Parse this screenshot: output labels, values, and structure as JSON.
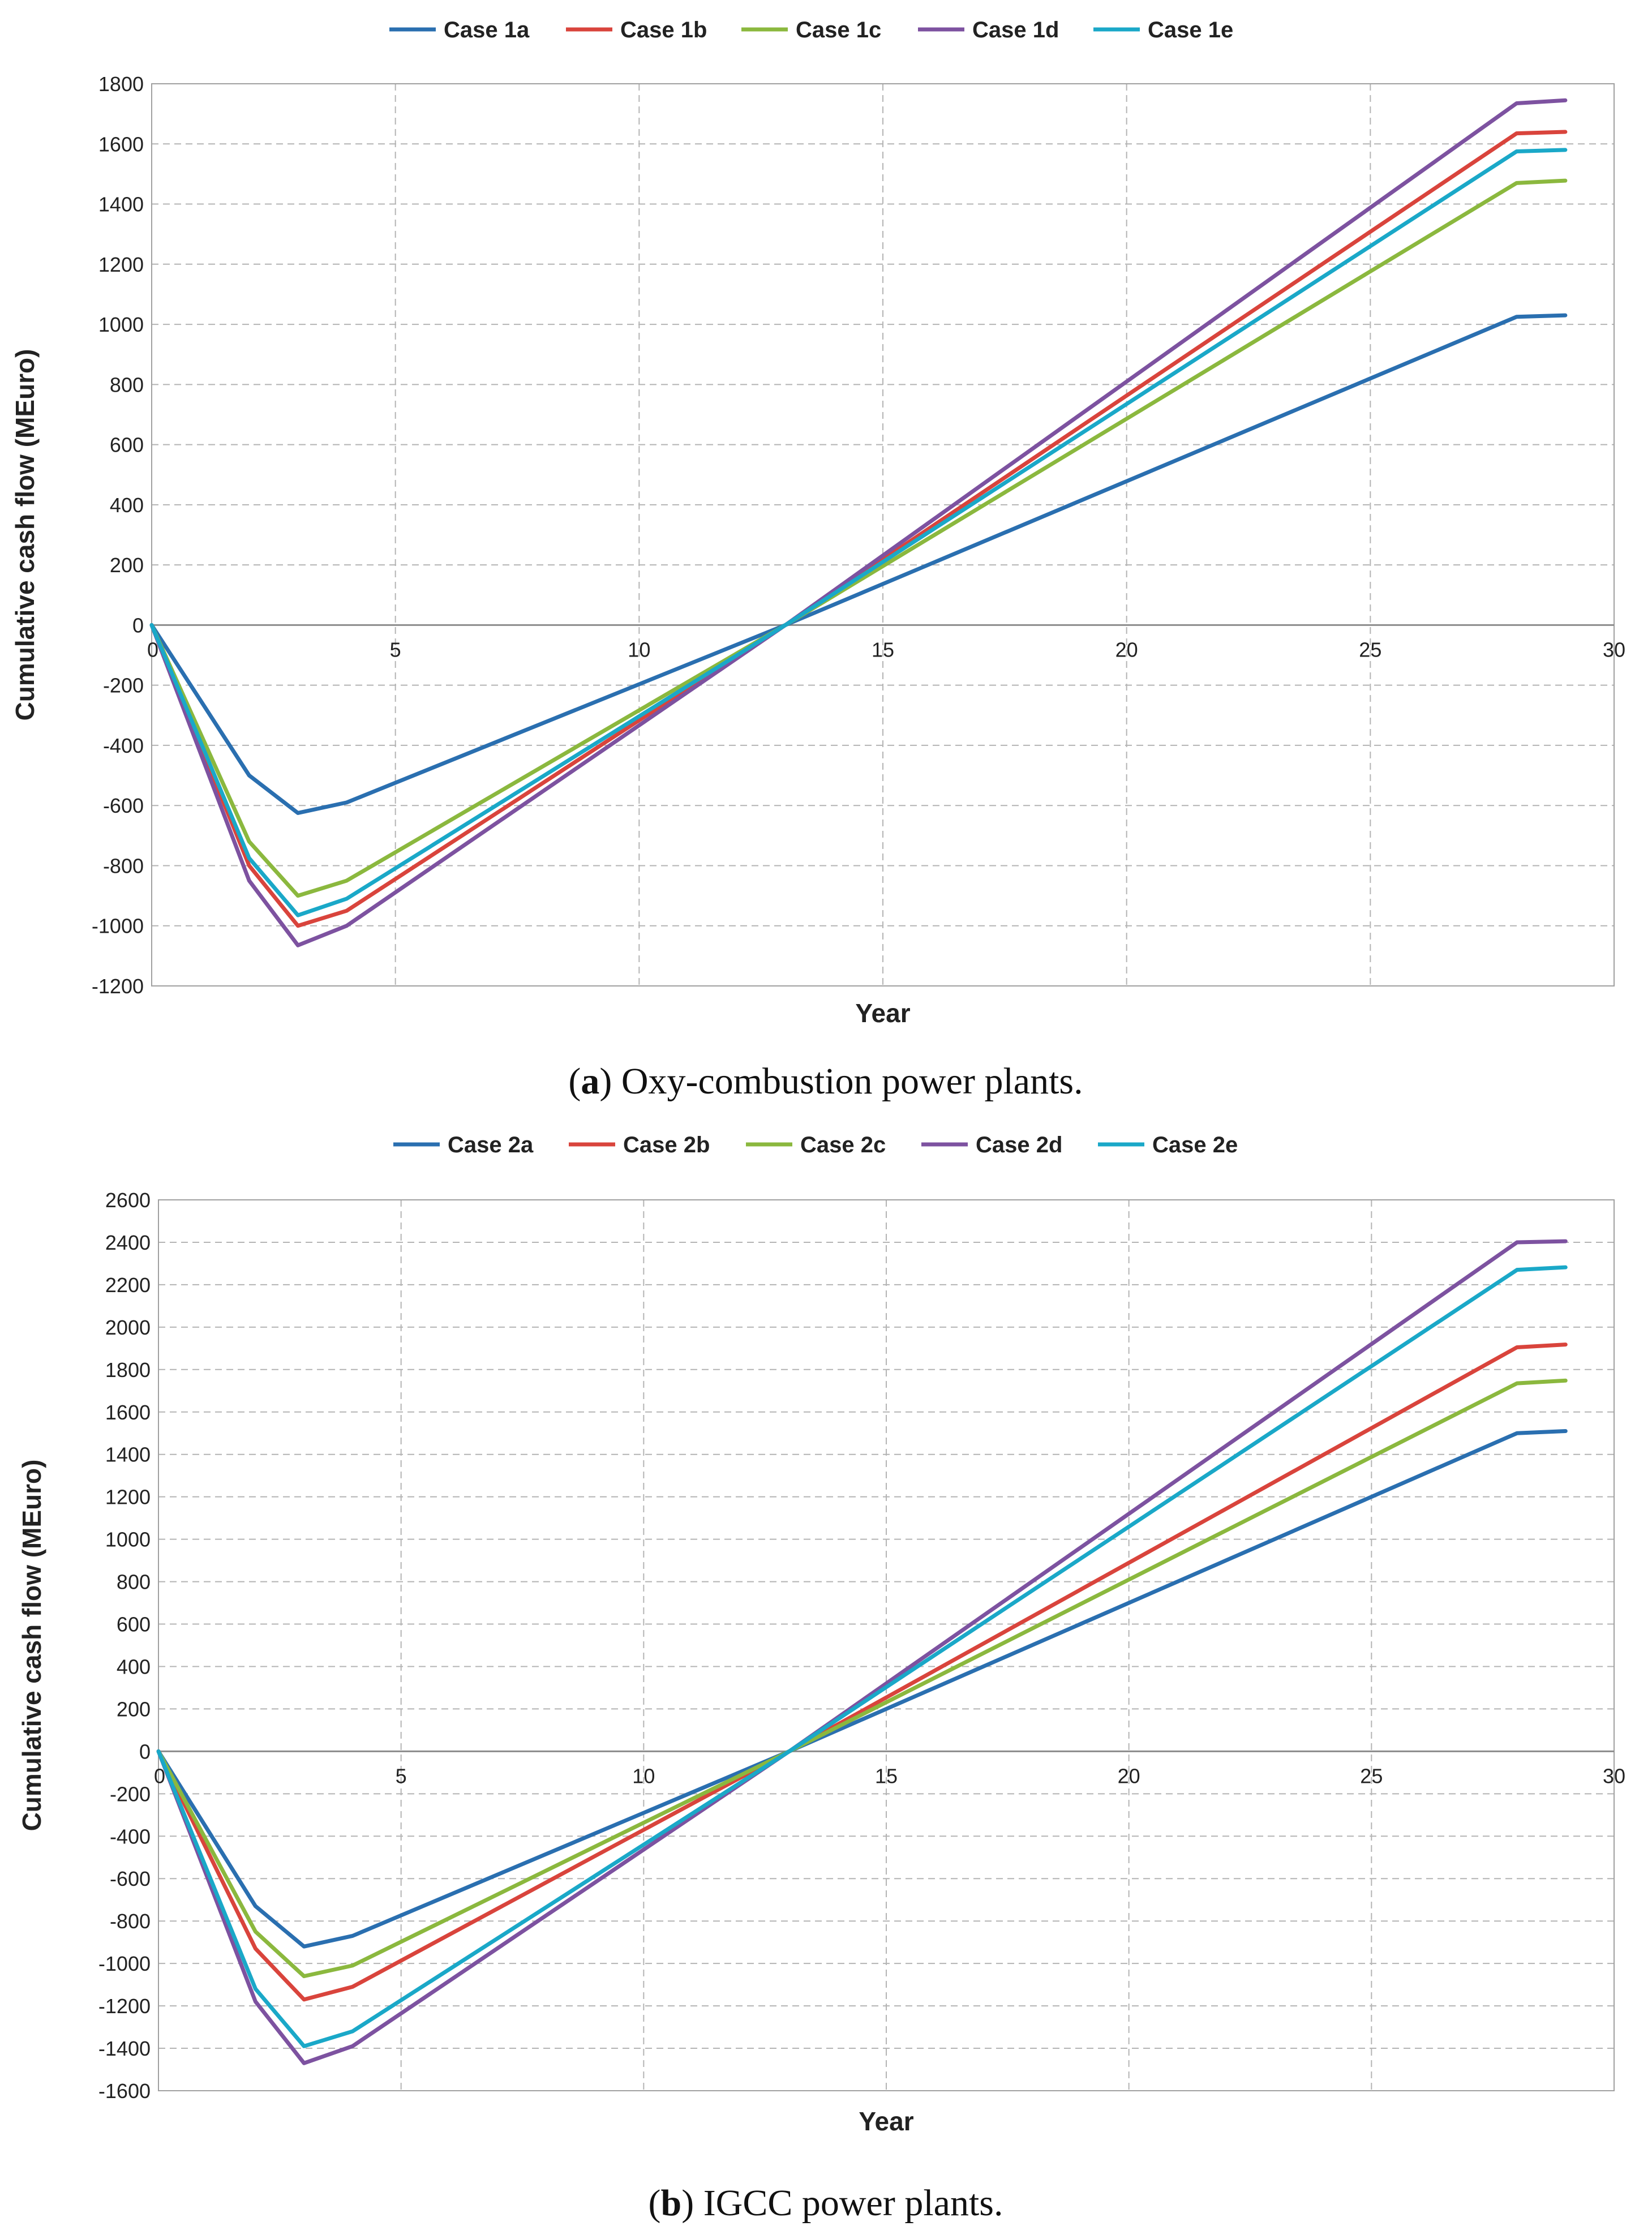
{
  "chart_data": [
    {
      "type": "line",
      "caption_letter": "a",
      "caption_text": "Oxy-combustion power plants.",
      "title": "",
      "xlabel": "Year",
      "ylabel": "Cumulative cash flow (MEuro)",
      "xlim": [
        0,
        30
      ],
      "ylim": [
        -1200,
        1800
      ],
      "xticks": [
        0,
        5,
        10,
        15,
        20,
        25,
        30
      ],
      "yticks": [
        -1200,
        -1000,
        -800,
        -600,
        -400,
        -200,
        0,
        200,
        400,
        600,
        800,
        1000,
        1200,
        1400,
        1600,
        1800
      ],
      "grid": true,
      "legend_position": "top",
      "x": [
        0,
        2,
        3,
        4,
        13,
        28,
        29
      ],
      "series": [
        {
          "name": "Case 1a",
          "color": "#2a6fb0",
          "values": [
            0,
            -500,
            -625,
            -590,
            0,
            1025,
            1030
          ]
        },
        {
          "name": "Case 1b",
          "color": "#d9443c",
          "values": [
            0,
            -800,
            -1000,
            -950,
            0,
            1635,
            1640
          ]
        },
        {
          "name": "Case 1c",
          "color": "#8bb83e",
          "values": [
            0,
            -720,
            -900,
            -850,
            0,
            1470,
            1478
          ]
        },
        {
          "name": "Case 1d",
          "color": "#7d52a0",
          "values": [
            0,
            -850,
            -1065,
            -1000,
            0,
            1735,
            1745
          ]
        },
        {
          "name": "Case 1e",
          "color": "#1aa8c8",
          "values": [
            0,
            -775,
            -965,
            -910,
            0,
            1575,
            1580
          ]
        }
      ]
    },
    {
      "type": "line",
      "caption_letter": "b",
      "caption_text": "IGCC power plants.",
      "title": "",
      "xlabel": "Year",
      "ylabel": "Cumulative cash flow (MEuro)",
      "xlim": [
        0,
        30
      ],
      "ylim": [
        -1600,
        2600
      ],
      "xticks": [
        0,
        5,
        10,
        15,
        20,
        25,
        30
      ],
      "yticks": [
        -1600,
        -1400,
        -1200,
        -1000,
        -800,
        -600,
        -400,
        -200,
        0,
        200,
        400,
        600,
        800,
        1000,
        1200,
        1400,
        1600,
        1800,
        2000,
        2200,
        2400,
        2600
      ],
      "grid": true,
      "legend_position": "top",
      "x": [
        0,
        2,
        3,
        4,
        13,
        28,
        29
      ],
      "series": [
        {
          "name": "Case 2a",
          "color": "#2a6fb0",
          "values": [
            0,
            -730,
            -920,
            -870,
            0,
            1500,
            1510
          ]
        },
        {
          "name": "Case 2b",
          "color": "#d9443c",
          "values": [
            0,
            -930,
            -1170,
            -1110,
            0,
            1905,
            1918
          ]
        },
        {
          "name": "Case 2c",
          "color": "#8bb83e",
          "values": [
            0,
            -850,
            -1060,
            -1010,
            0,
            1735,
            1748
          ]
        },
        {
          "name": "Case 2d",
          "color": "#7d52a0",
          "values": [
            0,
            -1180,
            -1470,
            -1390,
            0,
            2400,
            2405
          ]
        },
        {
          "name": "Case 2e",
          "color": "#1aa8c8",
          "values": [
            0,
            -1120,
            -1390,
            -1320,
            0,
            2270,
            2282
          ]
        }
      ]
    }
  ]
}
